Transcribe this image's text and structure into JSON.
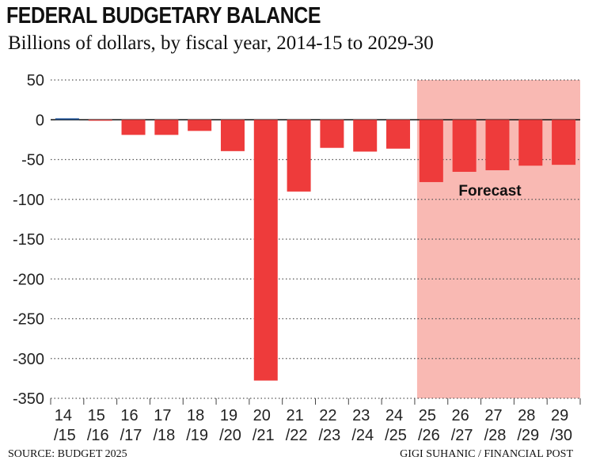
{
  "title": "FEDERAL BUDGETARY BALANCE",
  "subtitle": "Billions of dollars, by fiscal year, 2014-15 to 2029-30",
  "source": "SOURCE: BUDGET 2025",
  "credit": "GIGI SUHANIC / FINANCIAL POST",
  "colors": {
    "bar": "#ee3b3b",
    "surplus": "#2f5f9e",
    "forecast_bg": "#f9b9b3"
  },
  "chart_data": {
    "type": "bar",
    "categories": [
      [
        "14",
        "/15"
      ],
      [
        "15",
        "/16"
      ],
      [
        "16",
        "/17"
      ],
      [
        "17",
        "/18"
      ],
      [
        "18",
        "/19"
      ],
      [
        "19",
        "/20"
      ],
      [
        "20",
        "/21"
      ],
      [
        "21",
        "/22"
      ],
      [
        "22",
        "/23"
      ],
      [
        "23",
        "/24"
      ],
      [
        "24",
        "/25"
      ],
      [
        "25",
        "/26"
      ],
      [
        "26",
        "/27"
      ],
      [
        "27",
        "/28"
      ],
      [
        "28",
        "/29"
      ],
      [
        "29",
        "/30"
      ]
    ],
    "values": [
      1.9,
      -1.0,
      -19.0,
      -19.0,
      -14.0,
      -39.4,
      -327.7,
      -90.2,
      -35.3,
      -40.0,
      -36.3,
      -78.3,
      -65.4,
      -63.4,
      -57.7,
      -56.6
    ],
    "ylim": [
      -350,
      50
    ],
    "yticks": [
      50,
      0,
      -50,
      -100,
      -150,
      -200,
      -250,
      -300,
      -350
    ],
    "grid": true,
    "forecast_start_index": 11,
    "annotations": [
      {
        "text": "Forecast"
      }
    ]
  }
}
